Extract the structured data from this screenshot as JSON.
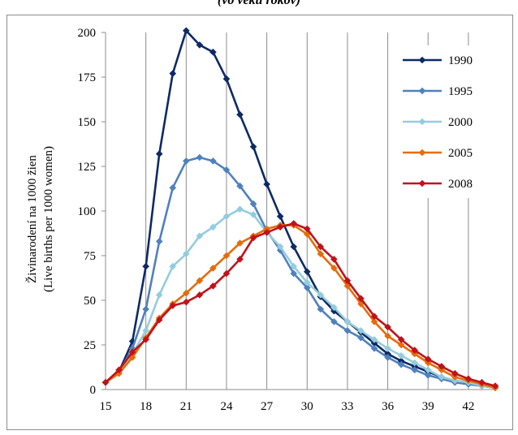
{
  "caption": "(vo veku rokov)",
  "chart_data": {
    "type": "line",
    "ylabel": [
      "Živinarodení na 1000 žien",
      "(Live births per 1000 women)"
    ],
    "xlim": [
      15,
      44
    ],
    "ylim": [
      0,
      200
    ],
    "x_ticks": [
      15,
      18,
      21,
      24,
      27,
      30,
      33,
      36,
      39,
      42
    ],
    "y_ticks": [
      0,
      25,
      50,
      75,
      100,
      125,
      150,
      175,
      200
    ],
    "grid": "vertical",
    "legend_position": "top-right",
    "x": [
      15,
      16,
      17,
      18,
      19,
      20,
      21,
      22,
      23,
      24,
      25,
      26,
      27,
      28,
      29,
      30,
      31,
      32,
      33,
      34,
      35,
      36,
      37,
      38,
      39,
      40,
      41,
      42,
      43,
      44
    ],
    "series": [
      {
        "name": "1990",
        "color": "#0d2a66",
        "values": [
          4,
          10,
          27,
          69,
          132,
          177,
          201,
          193,
          189,
          174,
          154,
          136,
          115,
          97,
          80,
          66,
          52,
          44,
          38,
          32,
          26,
          20,
          16,
          13,
          10,
          7,
          5,
          4,
          2,
          1
        ]
      },
      {
        "name": "1995",
        "color": "#4f81bd",
        "values": [
          4,
          10,
          23,
          45,
          83,
          113,
          128,
          130,
          128,
          123,
          114,
          104,
          89,
          78,
          65,
          57,
          45,
          38,
          33,
          29,
          23,
          18,
          14,
          11,
          8,
          6,
          4,
          3,
          2,
          1
        ]
      },
      {
        "name": "2000",
        "color": "#93cddd",
        "values": [
          4,
          10,
          20,
          33,
          53,
          69,
          76,
          86,
          91,
          97,
          101,
          98,
          88,
          80,
          69,
          60,
          53,
          46,
          38,
          33,
          28,
          23,
          19,
          15,
          11,
          7,
          5,
          4,
          2,
          1
        ]
      },
      {
        "name": "2005",
        "color": "#e46c0a",
        "values": [
          4,
          9,
          18,
          29,
          40,
          48,
          54,
          61,
          68,
          75,
          82,
          86,
          90,
          92,
          92,
          87,
          76,
          68,
          58,
          48,
          38,
          30,
          25,
          20,
          15,
          11,
          7,
          5,
          3,
          1
        ]
      },
      {
        "name": "2008",
        "color": "#c0121a",
        "values": [
          4,
          11,
          21,
          28,
          39,
          47,
          49,
          53,
          58,
          65,
          73,
          85,
          88,
          91,
          93,
          90,
          80,
          73,
          61,
          51,
          41,
          35,
          28,
          22,
          17,
          13,
          9,
          6,
          4,
          2
        ]
      }
    ]
  }
}
